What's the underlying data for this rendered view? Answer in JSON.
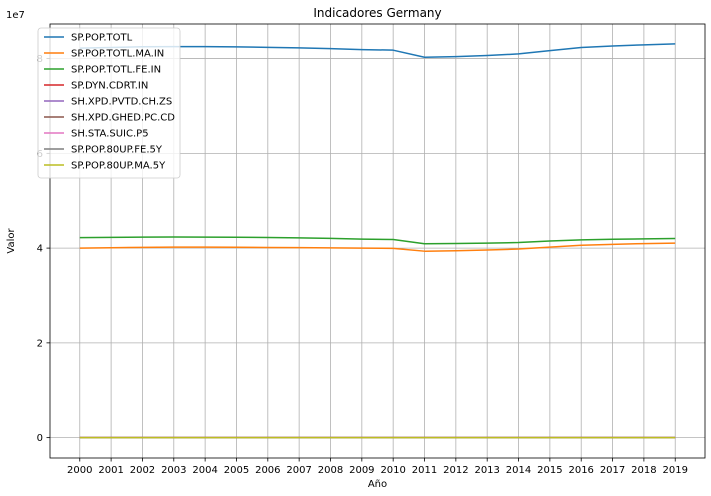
{
  "chart_data": {
    "type": "line",
    "title": "Indicadores Germany",
    "xlabel": "Año",
    "ylabel": "Valor",
    "y_offset_label": "1e7",
    "x": [
      2000,
      2001,
      2002,
      2003,
      2004,
      2005,
      2006,
      2007,
      2008,
      2009,
      2010,
      2011,
      2012,
      2013,
      2014,
      2015,
      2016,
      2017,
      2018,
      2019
    ],
    "xlim": [
      1999.05,
      2019.95
    ],
    "ylim": [
      -4300000,
      87300000
    ],
    "yticks": [
      0,
      20000000,
      40000000,
      60000000,
      80000000
    ],
    "ytick_labels": [
      "0",
      "2",
      "4",
      "6",
      "8"
    ],
    "grid": true,
    "legend_position": "top-left",
    "series": [
      {
        "name": "SP.POP.TOTL",
        "color": "#1f77b4",
        "values": [
          82211508,
          82349925,
          82488495,
          82534176,
          82516260,
          82469422,
          82376451,
          82266372,
          82110097,
          81902307,
          81776930,
          80274983,
          80425823,
          80645605,
          80982500,
          81686611,
          82348669,
          82657002,
          82905782,
          83092962
        ]
      },
      {
        "name": "SP.POP.TOTL.MA.IN",
        "color": "#ff7f0e",
        "values": [
          40000000,
          40080000,
          40160000,
          40200000,
          40200000,
          40180000,
          40140000,
          40100000,
          40050000,
          40000000,
          39950000,
          39350000,
          39450000,
          39600000,
          39800000,
          40200000,
          40600000,
          40800000,
          40950000,
          41050000
        ]
      },
      {
        "name": "SP.POP.TOTL.FE.IN",
        "color": "#2ca02c",
        "values": [
          42200000,
          42270000,
          42330000,
          42340000,
          42320000,
          42290000,
          42240000,
          42170000,
          42060000,
          41900000,
          41820000,
          40920000,
          40970000,
          41040000,
          41180000,
          41490000,
          41740000,
          41860000,
          41950000,
          42040000
        ]
      },
      {
        "name": "SP.DYN.CDRT.IN",
        "color": "#d62728",
        "values": [
          10.2,
          10.1,
          10.2,
          10.4,
          9.9,
          10.1,
          10.0,
          10.1,
          10.3,
          10.4,
          10.5,
          10.6,
          10.8,
          11.1,
          10.7,
          11.3,
          11.1,
          11.3,
          11.5,
          11.3
        ]
      },
      {
        "name": "SH.XPD.PVTD.CH.ZS",
        "color": "#9467bd",
        "values": [
          21,
          21,
          21,
          22,
          22,
          23,
          23,
          23,
          23,
          23,
          22,
          22,
          22,
          22,
          22,
          22,
          22,
          22,
          22,
          22
        ]
      },
      {
        "name": "SH.XPD.GHED.PC.CD",
        "color": "#8c564b",
        "values": [
          1800,
          1850,
          1950,
          2300,
          2600,
          2650,
          2750,
          3000,
          3400,
          3500,
          3400,
          3650,
          3550,
          3750,
          3900,
          3400,
          3550,
          3700,
          4000,
          3900
        ]
      },
      {
        "name": "SH.STA.SUIC.P5",
        "color": "#e377c2",
        "values": [
          13,
          13,
          13,
          13,
          12,
          12,
          11,
          11,
          11,
          11,
          11,
          12,
          12,
          12,
          12,
          12,
          12,
          12,
          12,
          12
        ]
      },
      {
        "name": "SP.POP.80UP.FE.5Y",
        "color": "#7f7f7f",
        "values": [
          5.0,
          5.0,
          5.1,
          5.2,
          5.3,
          5.4,
          5.6,
          5.7,
          5.9,
          6.0,
          6.1,
          6.2,
          6.3,
          6.4,
          6.6,
          6.7,
          6.8,
          7.0,
          7.1,
          7.2
        ]
      },
      {
        "name": "SP.POP.80UP.MA.5Y",
        "color": "#bcbd22",
        "values": [
          1.8,
          1.9,
          2.0,
          2.1,
          2.2,
          2.3,
          2.5,
          2.6,
          2.8,
          3.0,
          3.1,
          3.3,
          3.4,
          3.6,
          3.7,
          3.9,
          4.1,
          4.3,
          4.5,
          4.6
        ]
      }
    ]
  }
}
